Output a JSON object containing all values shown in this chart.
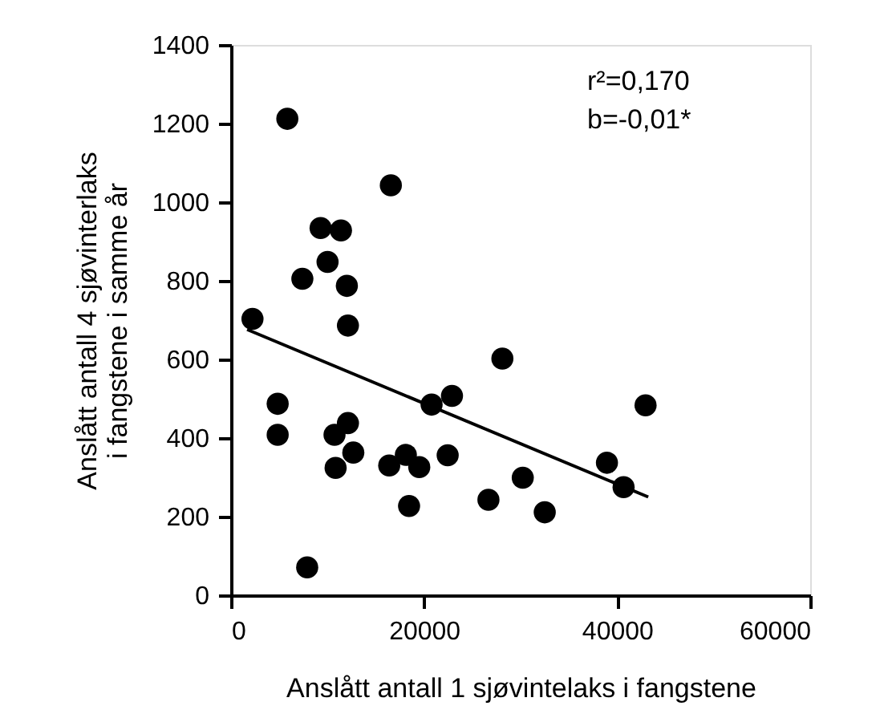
{
  "chart_data": {
    "type": "scatter",
    "xlabel": "Anslått antall 1 sjøvintelaks i fangstene",
    "ylabel": "Anslått antall 4 sjøvinterlaks\ni fangstene i samme år",
    "annotations": [
      "r²=0,170",
      "b=-0,01*"
    ],
    "xlim": [
      0,
      60000
    ],
    "xticks": [
      0,
      20000,
      40000,
      60000
    ],
    "ylim": [
      0,
      1400
    ],
    "yticks": [
      0,
      200,
      400,
      600,
      800,
      1000,
      1200,
      1400
    ],
    "grid": false,
    "marker": "circle",
    "series": [
      {
        "color": "#000000",
        "x": [
          2222,
          5833,
          4833,
          4833,
          7889,
          7389,
          9278,
          11389,
          10000,
          12000,
          12111,
          10722,
          12111,
          10833,
          12667,
          16556,
          16389,
          18111,
          18444,
          19500,
          20778,
          22889,
          22444,
          28111,
          26667,
          30222,
          32500,
          38944,
          40667,
          42944
        ],
        "values": [
          703,
          1212,
          487,
          408,
          71,
          805,
          934,
          928,
          848,
          787,
          686,
          408,
          438,
          324,
          363,
          1043,
          330,
          357,
          227,
          326,
          485,
          507,
          356,
          602,
          243,
          299,
          211,
          337,
          275,
          483
        ]
      },
      {
        "type": "line",
        "color": "#000000",
        "line_style": "solid",
        "marker": "none",
        "x": [
          1667,
          43222
        ],
        "values": [
          676,
          250
        ]
      }
    ]
  }
}
